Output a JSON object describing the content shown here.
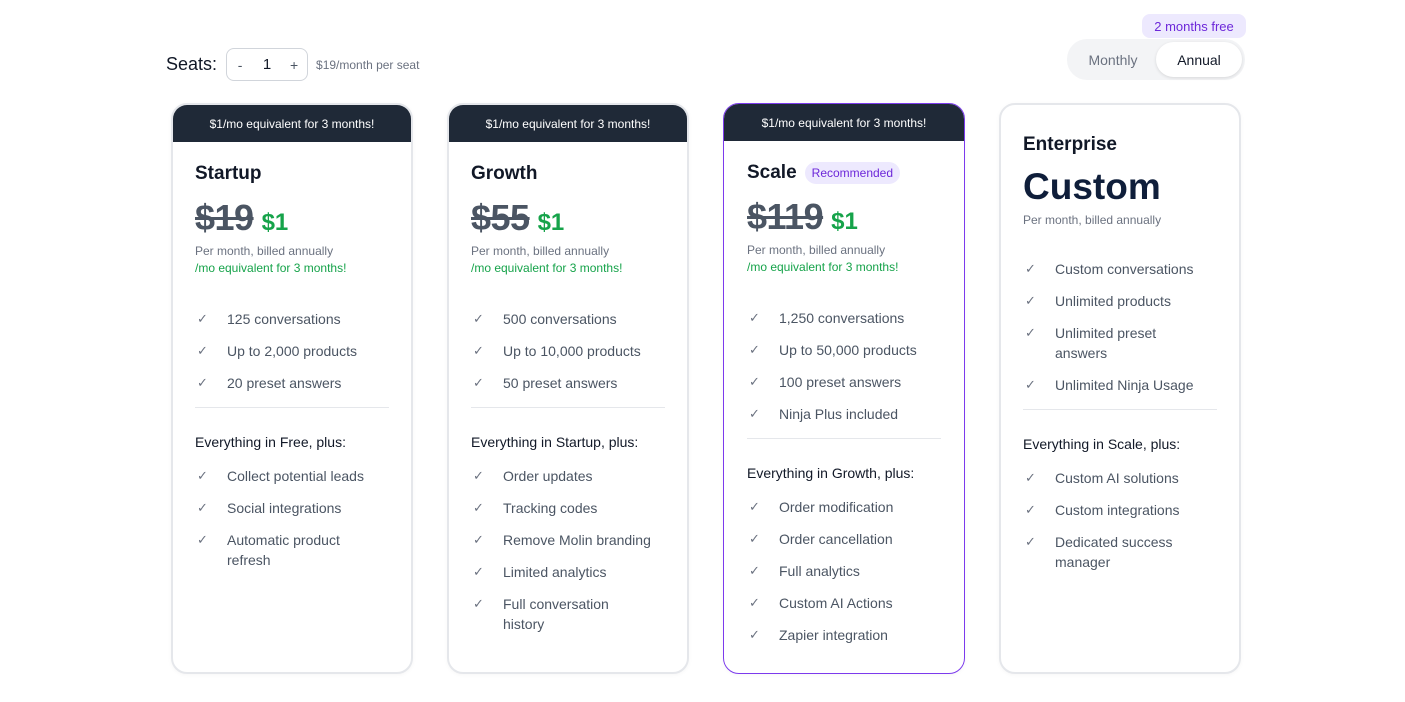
{
  "seats": {
    "label": "Seats:",
    "minus": "-",
    "plus": "+",
    "value": "1",
    "price_note": "$19/month per seat"
  },
  "billing_toggle": {
    "badge": "2 months free",
    "monthly": "Monthly",
    "annual": "Annual",
    "selected": "Annual"
  },
  "plans": [
    {
      "banner": "$1/mo equivalent for 3 months!",
      "name": "Startup",
      "old_price": "$19",
      "new_price": "$1",
      "billing": "Per month, billed annually",
      "promo": "/mo equivalent for 3 months!",
      "features": [
        "125 conversations",
        "Up to 2,000 products",
        "20 preset answers"
      ],
      "plus_header": "Everything in Free, plus:",
      "plus_features": [
        "Collect potential leads",
        "Social integrations",
        "Automatic product refresh"
      ]
    },
    {
      "banner": "$1/mo equivalent for 3 months!",
      "name": "Growth",
      "old_price": "$55",
      "new_price": "$1",
      "billing": "Per month, billed annually",
      "promo": "/mo equivalent for 3 months!",
      "features": [
        "500 conversations",
        "Up to 10,000 products",
        "50 preset answers"
      ],
      "plus_header": "Everything in Startup, plus:",
      "plus_features": [
        "Order updates",
        "Tracking codes",
        "Remove Molin branding",
        "Limited analytics",
        "Full conversation history"
      ]
    },
    {
      "banner": "$1/mo equivalent for 3 months!",
      "name": "Scale",
      "badge": "Recommended",
      "old_price": "$119",
      "new_price": "$1",
      "billing": "Per month, billed annually",
      "promo": "/mo equivalent for 3 months!",
      "features": [
        "1,250 conversations",
        "Up to 50,000 products",
        "100 preset answers",
        "Ninja Plus included"
      ],
      "plus_header": "Everything in Growth, plus:",
      "plus_features": [
        "Order modification",
        "Order cancellation",
        "Full analytics",
        "Custom AI Actions",
        "Zapier integration"
      ]
    },
    {
      "name": "Enterprise",
      "price": "Custom",
      "billing": "Per month, billed annually",
      "features": [
        "Custom conversations",
        "Unlimited products",
        "Unlimited preset answers",
        "Unlimited Ninja Usage"
      ],
      "plus_header": "Everything in Scale, plus:",
      "plus_features": [
        "Custom AI solutions",
        "Custom integrations",
        "Dedicated success manager"
      ]
    }
  ],
  "icons": {
    "feature": "check-icon"
  },
  "colors": {
    "accent": "#7c3aed",
    "promo_green": "#16a34a",
    "banner": "#1f2937"
  }
}
